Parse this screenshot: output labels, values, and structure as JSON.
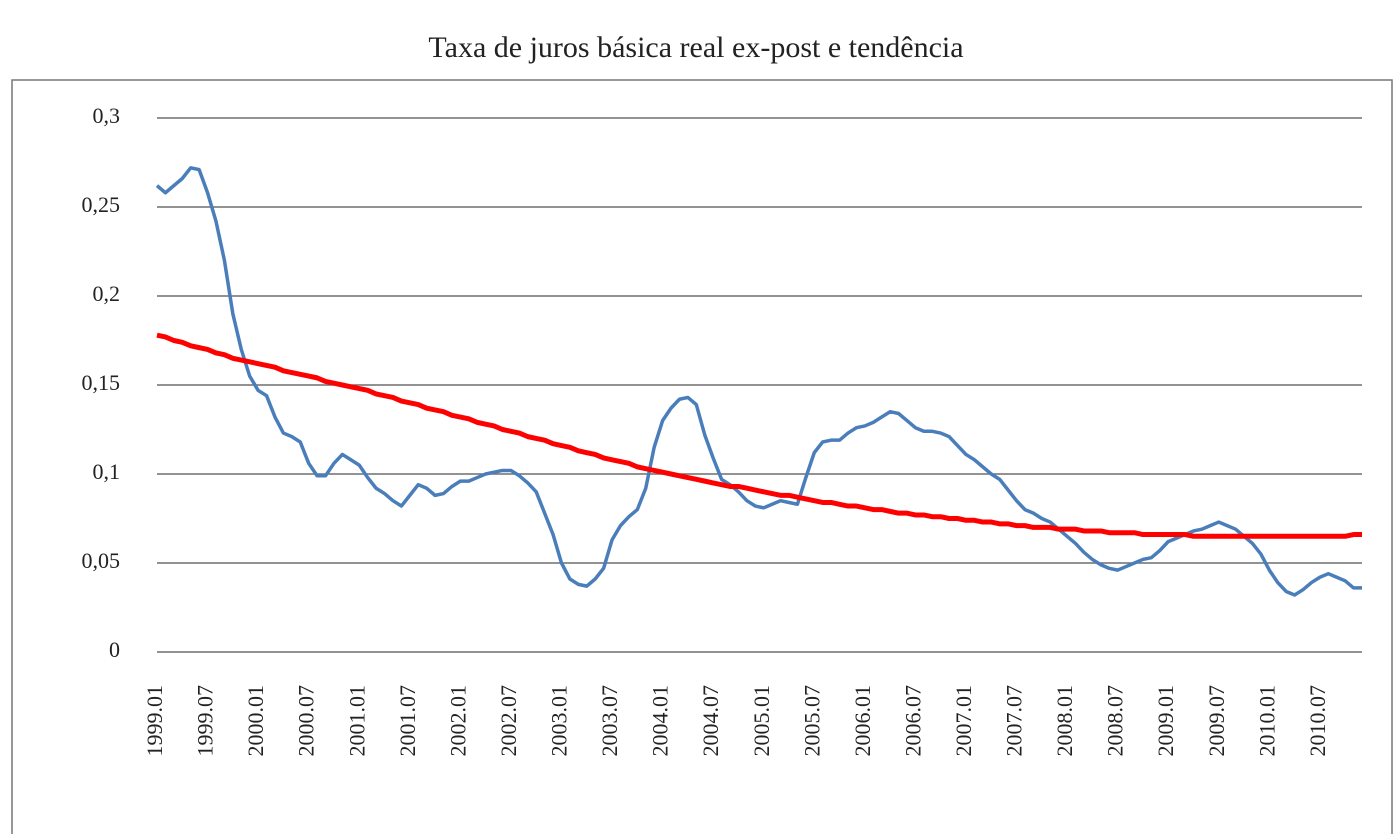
{
  "chart_data": {
    "type": "line",
    "title": "Taxa de juros básica real ex-post e tendência",
    "categories": [
      "1999.01",
      null,
      null,
      null,
      null,
      null,
      "1999.07",
      null,
      null,
      null,
      null,
      null,
      "2000.01",
      null,
      null,
      null,
      null,
      null,
      "2000.07",
      null,
      null,
      null,
      null,
      null,
      "2001.01",
      null,
      null,
      null,
      null,
      null,
      "2001.07",
      null,
      null,
      null,
      null,
      null,
      "2002.01",
      null,
      null,
      null,
      null,
      null,
      "2002.07",
      null,
      null,
      null,
      null,
      null,
      "2003.01",
      null,
      null,
      null,
      null,
      null,
      "2003.07",
      null,
      null,
      null,
      null,
      null,
      "2004.01",
      null,
      null,
      null,
      null,
      null,
      "2004.07",
      null,
      null,
      null,
      null,
      null,
      "2005.01",
      null,
      null,
      null,
      null,
      null,
      "2005.07",
      null,
      null,
      null,
      null,
      null,
      "2006.01",
      null,
      null,
      null,
      null,
      null,
      "2006.07",
      null,
      null,
      null,
      null,
      null,
      "2007.01",
      null,
      null,
      null,
      null,
      null,
      "2007.07",
      null,
      null,
      null,
      null,
      null,
      "2008.01",
      null,
      null,
      null,
      null,
      null,
      "2008.07",
      null,
      null,
      null,
      null,
      null,
      "2009.01",
      null,
      null,
      null,
      null,
      null,
      "2009.07",
      null,
      null,
      null,
      null,
      null,
      "2010.01",
      null,
      null,
      null,
      null,
      null,
      "2010.07",
      null,
      null,
      null,
      null,
      null
    ],
    "series": [
      {
        "color": "#4a7ebb",
        "values": [
          0.262,
          0.258,
          0.262,
          0.266,
          0.272,
          0.271,
          0.258,
          0.242,
          0.22,
          0.19,
          0.17,
          0.155,
          0.147,
          0.144,
          0.132,
          0.123,
          0.121,
          0.118,
          0.106,
          0.099,
          0.099,
          0.106,
          0.111,
          0.108,
          0.105,
          0.098,
          0.092,
          0.089,
          0.085,
          0.082,
          0.088,
          0.094,
          0.092,
          0.088,
          0.089,
          0.093,
          0.096,
          0.096,
          0.098,
          0.1,
          0.101,
          0.102,
          0.102,
          0.099,
          0.095,
          0.09,
          0.078,
          0.066,
          0.05,
          0.041,
          0.038,
          0.037,
          0.041,
          0.047,
          0.063,
          0.071,
          0.076,
          0.08,
          0.092,
          0.115,
          0.13,
          0.137,
          0.142,
          0.143,
          0.139,
          0.122,
          0.109,
          0.097,
          0.094,
          0.09,
          0.085,
          0.082,
          0.081,
          0.083,
          0.085,
          0.084,
          0.083,
          0.098,
          0.112,
          0.118,
          0.119,
          0.119,
          0.123,
          0.126,
          0.127,
          0.129,
          0.132,
          0.135,
          0.134,
          0.13,
          0.126,
          0.124,
          0.124,
          0.123,
          0.121,
          0.116,
          0.111,
          0.108,
          0.104,
          0.1,
          0.097,
          0.091,
          0.085,
          0.08,
          0.078,
          0.075,
          0.073,
          0.069,
          0.065,
          0.061,
          0.056,
          0.052,
          0.049,
          0.047,
          0.046,
          0.048,
          0.05,
          0.052,
          0.053,
          0.057,
          0.062,
          0.064,
          0.066,
          0.068,
          0.069,
          0.071,
          0.073,
          0.071,
          0.069,
          0.065,
          0.061,
          0.055,
          0.046,
          0.039,
          0.034,
          0.032,
          0.035,
          0.039,
          0.042,
          0.044,
          0.042,
          0.04,
          0.036,
          0.036
        ]
      },
      {
        "color": "#ff0000",
        "values": [
          0.178,
          0.177,
          0.175,
          0.174,
          0.172,
          0.171,
          0.17,
          0.168,
          0.167,
          0.165,
          0.164,
          0.163,
          0.162,
          0.161,
          0.16,
          0.158,
          0.157,
          0.156,
          0.155,
          0.154,
          0.152,
          0.151,
          0.15,
          0.149,
          0.148,
          0.147,
          0.145,
          0.144,
          0.143,
          0.141,
          0.14,
          0.139,
          0.137,
          0.136,
          0.135,
          0.133,
          0.132,
          0.131,
          0.129,
          0.128,
          0.127,
          0.125,
          0.124,
          0.123,
          0.121,
          0.12,
          0.119,
          0.117,
          0.116,
          0.115,
          0.113,
          0.112,
          0.111,
          0.109,
          0.108,
          0.107,
          0.106,
          0.104,
          0.103,
          0.102,
          0.101,
          0.1,
          0.099,
          0.098,
          0.097,
          0.096,
          0.095,
          0.094,
          0.093,
          0.093,
          0.092,
          0.091,
          0.09,
          0.089,
          0.088,
          0.088,
          0.087,
          0.086,
          0.085,
          0.084,
          0.084,
          0.083,
          0.082,
          0.082,
          0.081,
          0.08,
          0.08,
          0.079,
          0.078,
          0.078,
          0.077,
          0.077,
          0.076,
          0.076,
          0.075,
          0.075,
          0.074,
          0.074,
          0.073,
          0.073,
          0.072,
          0.072,
          0.071,
          0.071,
          0.07,
          0.07,
          0.07,
          0.069,
          0.069,
          0.069,
          0.068,
          0.068,
          0.068,
          0.067,
          0.067,
          0.067,
          0.067,
          0.066,
          0.066,
          0.066,
          0.066,
          0.066,
          0.066,
          0.065,
          0.065,
          0.065,
          0.065,
          0.065,
          0.065,
          0.065,
          0.065,
          0.065,
          0.065,
          0.065,
          0.065,
          0.065,
          0.065,
          0.065,
          0.065,
          0.065,
          0.065,
          0.065,
          0.066,
          0.066
        ]
      }
    ],
    "ylim": [
      0,
      0.3
    ],
    "yticks": [
      0,
      {
        "value": 0.05,
        "label": "0,05"
      },
      {
        "value": 0.1,
        "label": "0,1"
      },
      {
        "value": 0.15,
        "label": "0,15"
      },
      {
        "value": 0.2,
        "label": "0,2"
      },
      {
        "value": 0.25,
        "label": "0,25"
      },
      {
        "value": 0.3,
        "label": "0,3"
      }
    ],
    "grid": true
  }
}
